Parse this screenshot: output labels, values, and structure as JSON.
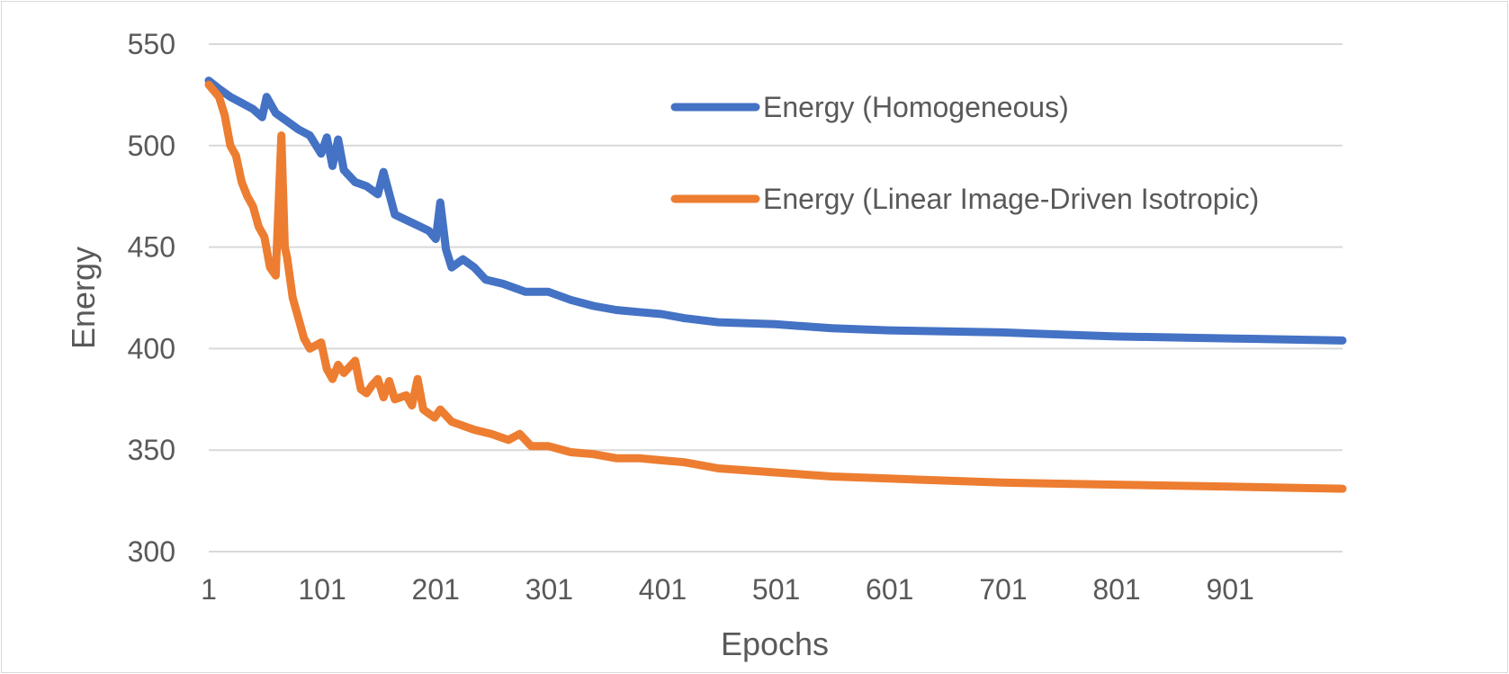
{
  "chart_data": {
    "type": "line",
    "title": "",
    "xlabel": "Epochs",
    "ylabel": "Energy",
    "xlim": [
      1,
      1000
    ],
    "ylim": [
      300,
      550
    ],
    "grid": true,
    "legend_position": "top-right",
    "x_ticks": [
      1,
      101,
      201,
      301,
      401,
      501,
      601,
      701,
      801,
      901
    ],
    "y_ticks": [
      300,
      350,
      400,
      450,
      500,
      550
    ],
    "series": [
      {
        "name": "Energy (Homogeneous)",
        "color": "#4472c4",
        "x": [
          1,
          10,
          20,
          30,
          40,
          48,
          52,
          60,
          70,
          80,
          90,
          100,
          105,
          110,
          115,
          120,
          130,
          140,
          150,
          155,
          165,
          180,
          195,
          201,
          205,
          210,
          215,
          225,
          235,
          245,
          260,
          280,
          300,
          320,
          340,
          360,
          380,
          400,
          420,
          450,
          500,
          550,
          600,
          700,
          800,
          900,
          1000
        ],
        "y": [
          532,
          528,
          524,
          521,
          518,
          514,
          524,
          516,
          512,
          508,
          505,
          496,
          504,
          490,
          503,
          488,
          482,
          480,
          476,
          487,
          466,
          462,
          458,
          454,
          472,
          449,
          440,
          444,
          440,
          434,
          432,
          428,
          428,
          424,
          421,
          419,
          418,
          417,
          415,
          413,
          412,
          410,
          409,
          408,
          406,
          405,
          404
        ]
      },
      {
        "name": "Energy (Linear Image-Driven Isotropic)",
        "color": "#ed7d31",
        "x": [
          1,
          10,
          15,
          20,
          25,
          30,
          35,
          40,
          45,
          50,
          55,
          60,
          65,
          68,
          70,
          75,
          80,
          85,
          90,
          100,
          105,
          110,
          115,
          120,
          130,
          135,
          140,
          145,
          150,
          155,
          160,
          165,
          175,
          180,
          185,
          190,
          195,
          200,
          205,
          215,
          225,
          235,
          250,
          265,
          275,
          285,
          300,
          320,
          340,
          360,
          380,
          400,
          420,
          450,
          500,
          550,
          600,
          700,
          800,
          900,
          1000
        ],
        "y": [
          530,
          524,
          515,
          500,
          495,
          482,
          475,
          470,
          460,
          455,
          440,
          436,
          505,
          450,
          445,
          425,
          415,
          405,
          400,
          403,
          390,
          385,
          392,
          388,
          394,
          380,
          378,
          382,
          385,
          376,
          384,
          375,
          377,
          372,
          385,
          370,
          368,
          366,
          370,
          364,
          362,
          360,
          358,
          355,
          358,
          352,
          352,
          349,
          348,
          346,
          346,
          345,
          344,
          341,
          339,
          337,
          336,
          334,
          333,
          332,
          331
        ]
      }
    ]
  }
}
